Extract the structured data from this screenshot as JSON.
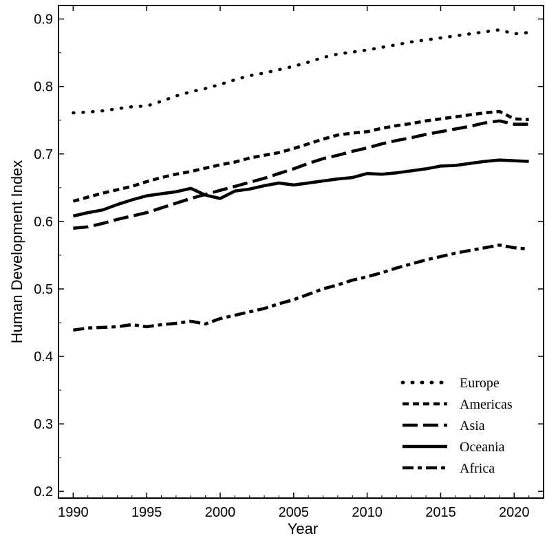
{
  "chart_data": {
    "type": "line",
    "title": "",
    "xlabel": "Year",
    "ylabel": "Human Development Index",
    "xlim": [
      1989,
      2022
    ],
    "ylim": [
      0.19,
      0.92
    ],
    "xticks": [
      1990,
      1995,
      2000,
      2005,
      2010,
      2015,
      2020
    ],
    "yticks": [
      0.2,
      0.3,
      0.4,
      0.5,
      0.6,
      0.7,
      0.8,
      0.9
    ],
    "ytick_labels": [
      "0.2",
      "0.3",
      "0.4",
      "0.5",
      "0.6",
      "0.7",
      "0.8",
      "0.9"
    ],
    "grid": false,
    "legend_position": "bottom-right",
    "x": [
      1990,
      1991,
      1992,
      1993,
      1994,
      1995,
      1996,
      1997,
      1998,
      1999,
      2000,
      2001,
      2002,
      2003,
      2004,
      2005,
      2006,
      2007,
      2008,
      2009,
      2010,
      2011,
      2012,
      2013,
      2014,
      2015,
      2016,
      2017,
      2018,
      2019,
      2020,
      2021
    ],
    "series": [
      {
        "name": "Europe",
        "dash": "dotted",
        "values": [
          0.761,
          0.762,
          0.764,
          0.767,
          0.77,
          0.771,
          0.778,
          0.786,
          0.792,
          0.797,
          0.803,
          0.81,
          0.816,
          0.82,
          0.825,
          0.83,
          0.836,
          0.843,
          0.848,
          0.851,
          0.854,
          0.858,
          0.862,
          0.866,
          0.869,
          0.872,
          0.875,
          0.878,
          0.881,
          0.884,
          0.878,
          0.88
        ]
      },
      {
        "name": "Americas",
        "dash": "short-dash",
        "values": [
          0.63,
          0.636,
          0.642,
          0.647,
          0.652,
          0.659,
          0.665,
          0.67,
          0.674,
          0.679,
          0.684,
          0.688,
          0.694,
          0.698,
          0.702,
          0.708,
          0.715,
          0.722,
          0.728,
          0.731,
          0.733,
          0.738,
          0.742,
          0.745,
          0.749,
          0.752,
          0.755,
          0.758,
          0.761,
          0.763,
          0.752,
          0.751
        ]
      },
      {
        "name": "Asia",
        "dash": "long-dash",
        "values": [
          0.59,
          0.592,
          0.597,
          0.603,
          0.608,
          0.613,
          0.62,
          0.627,
          0.634,
          0.64,
          0.646,
          0.652,
          0.658,
          0.664,
          0.671,
          0.678,
          0.686,
          0.693,
          0.698,
          0.704,
          0.709,
          0.715,
          0.72,
          0.724,
          0.729,
          0.733,
          0.737,
          0.741,
          0.746,
          0.749,
          0.744,
          0.744
        ]
      },
      {
        "name": "Oceania",
        "dash": "solid",
        "values": [
          0.608,
          0.613,
          0.617,
          0.625,
          0.632,
          0.638,
          0.641,
          0.644,
          0.649,
          0.639,
          0.634,
          0.645,
          0.648,
          0.653,
          0.657,
          0.654,
          0.657,
          0.66,
          0.663,
          0.665,
          0.671,
          0.67,
          0.672,
          0.675,
          0.678,
          0.682,
          0.683,
          0.686,
          0.689,
          0.691,
          0.69,
          0.689
        ]
      },
      {
        "name": "Africa",
        "dash": "dash-dot",
        "values": [
          0.439,
          0.442,
          0.443,
          0.444,
          0.447,
          0.444,
          0.447,
          0.449,
          0.452,
          0.448,
          0.456,
          0.461,
          0.466,
          0.471,
          0.478,
          0.484,
          0.492,
          0.5,
          0.506,
          0.513,
          0.518,
          0.524,
          0.531,
          0.537,
          0.543,
          0.548,
          0.553,
          0.557,
          0.561,
          0.565,
          0.561,
          0.559
        ]
      }
    ]
  }
}
